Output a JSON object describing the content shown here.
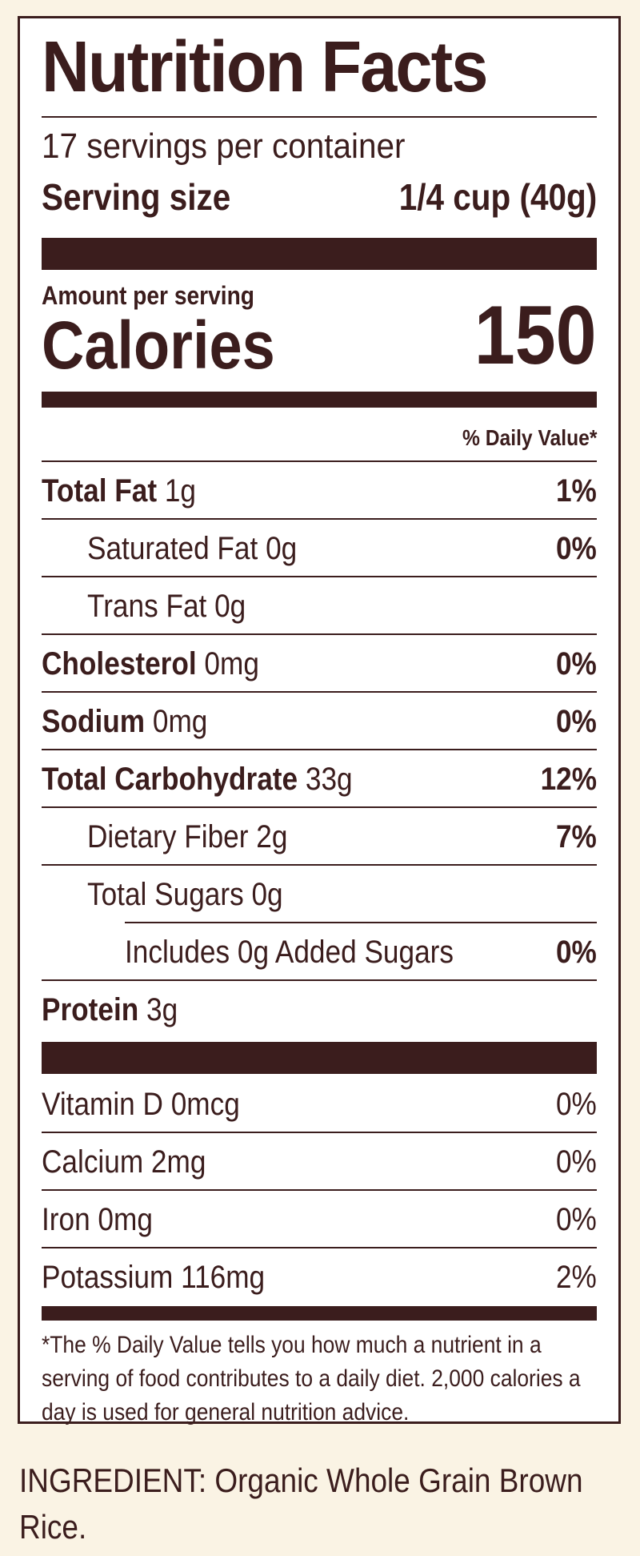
{
  "label": {
    "title": "Nutrition Facts",
    "servings_per_container": "17 servings per container",
    "serving_size_label": "Serving size",
    "serving_size_value": "1/4 cup (40g)",
    "amount_per_serving": "Amount per serving",
    "calories_label": "Calories",
    "calories_value": "150",
    "daily_value_header": "% Daily Value*"
  },
  "nutrients": [
    {
      "name": "Total Fat",
      "amount": "1g",
      "dv": "1%"
    },
    {
      "name": "Saturated Fat",
      "amount": "0g",
      "dv": "0%"
    },
    {
      "name": "Trans Fat",
      "amount": "0g",
      "dv": ""
    },
    {
      "name": "Cholesterol",
      "amount": "0mg",
      "dv": "0%"
    },
    {
      "name": "Sodium",
      "amount": "0mg",
      "dv": "0%"
    },
    {
      "name": "Total Carbohydrate",
      "amount": "33g",
      "dv": "12%"
    },
    {
      "name": "Dietary Fiber",
      "amount": "2g",
      "dv": "7%"
    },
    {
      "name": "Total Sugars",
      "amount": "0g",
      "dv": ""
    },
    {
      "name": "Includes 0g Added Sugars",
      "amount": "",
      "dv": "0%"
    },
    {
      "name": "Protein",
      "amount": "3g",
      "dv": ""
    }
  ],
  "vitamins": [
    {
      "name": "Vitamin D 0mcg",
      "dv": "0%"
    },
    {
      "name": "Calcium 2mg",
      "dv": "0%"
    },
    {
      "name": "Iron 0mg",
      "dv": "0%"
    },
    {
      "name": "Potassium 116mg",
      "dv": "2%"
    }
  ],
  "footnote": "*The % Daily Value tells you how much a nutrient in a serving of food contributes to a daily diet. 2,000 calories a day is used for general nutrition advice.",
  "ingredient": "INGREDIENT: Organic Whole Grain Brown Rice.",
  "colors": {
    "ink": "#3b1d1d",
    "background": "#faf3e4",
    "panel": "#ffffff"
  }
}
